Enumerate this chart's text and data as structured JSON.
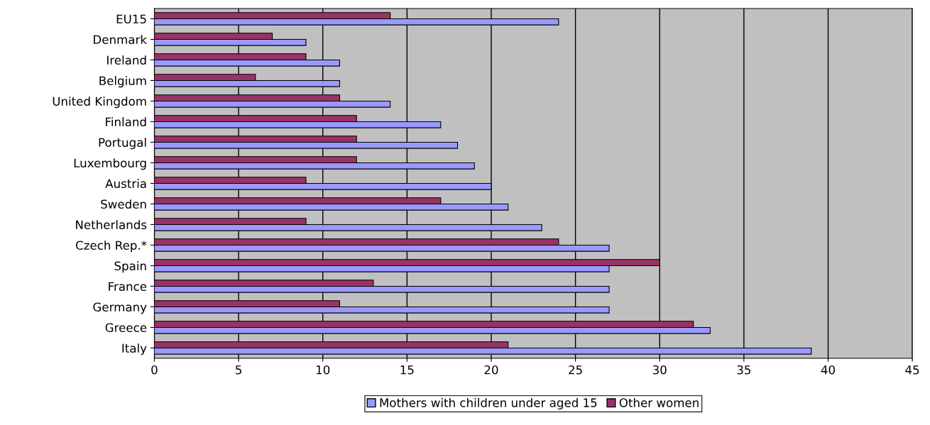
{
  "chart_data": {
    "type": "bar",
    "orientation": "horizontal",
    "categories": [
      "EU15",
      "Denmark",
      "Ireland",
      "Belgium",
      "United Kingdom",
      "Finland",
      "Portugal",
      "Luxembourg",
      "Austria",
      "Sweden",
      "Netherlands",
      "Czech Rep.*",
      "Spain",
      "France",
      "Germany",
      "Greece",
      "Italy"
    ],
    "series": [
      {
        "name": "Mothers with children under aged 15",
        "color": "#9999ff",
        "values": [
          24,
          9,
          11,
          11,
          14,
          17,
          18,
          19,
          20,
          21,
          23,
          27,
          27,
          27,
          27,
          33,
          39
        ]
      },
      {
        "name": "Other women",
        "color": "#993366",
        "values": [
          14,
          7,
          9,
          6,
          11,
          12,
          12,
          12,
          9,
          17,
          9,
          24,
          30,
          13,
          11,
          32,
          21
        ]
      }
    ],
    "xlim": [
      0,
      45
    ],
    "xticks": [
      0,
      5,
      10,
      15,
      20,
      25,
      30,
      35,
      40,
      45
    ],
    "grid": "x",
    "legend": "bottom"
  }
}
